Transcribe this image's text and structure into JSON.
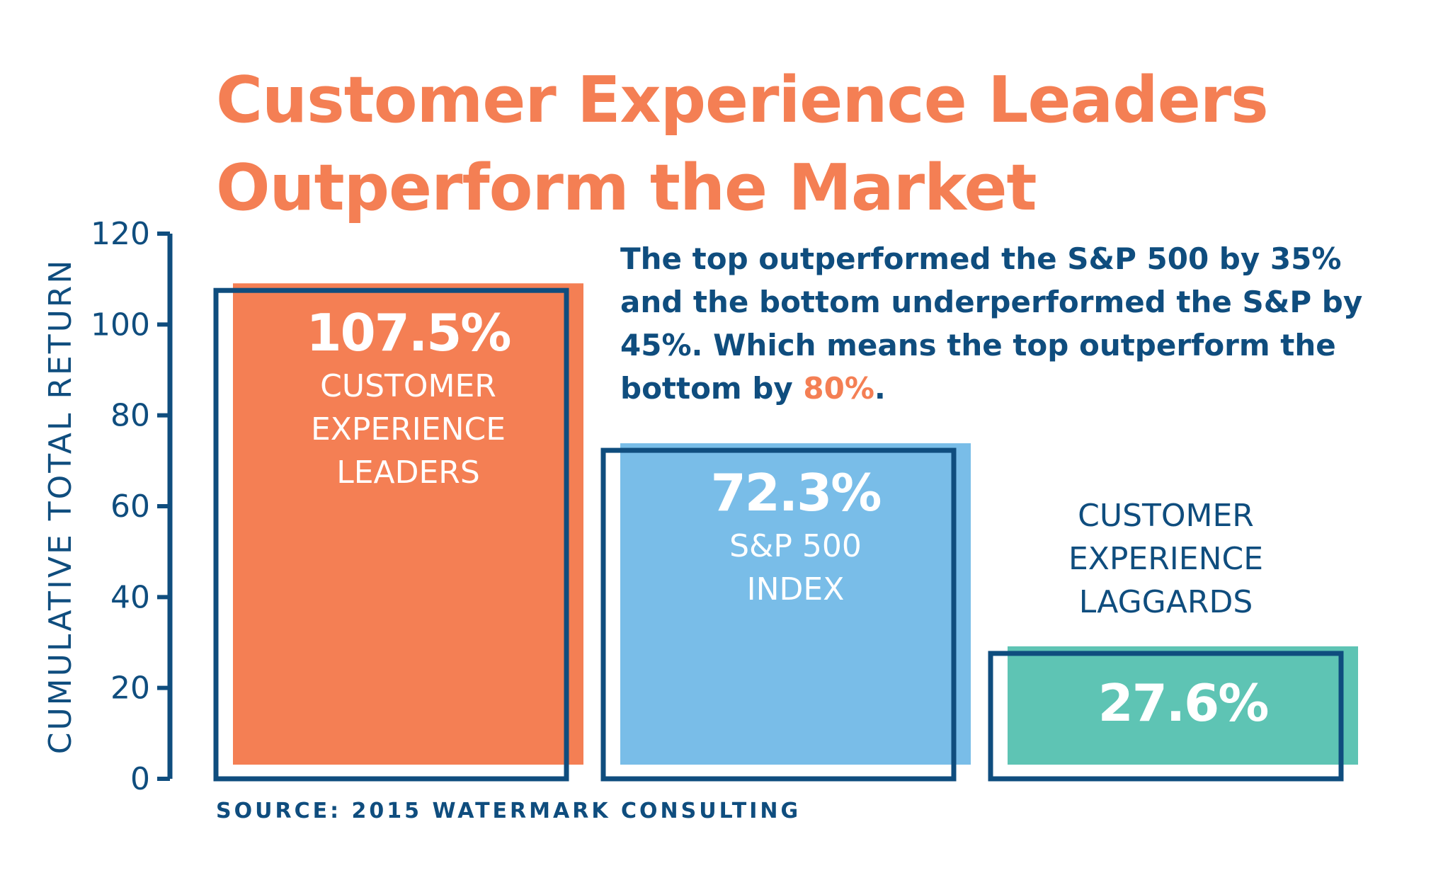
{
  "title_lines": [
    "Customer Experience Leaders",
    "Outperform the Market"
  ],
  "note": {
    "before": "The top outperformed the S&P 500 by 35% and the bottom underperformed the S&P by 45%. Which means the top outperform the bottom by ",
    "highlight": "80%",
    "after": "."
  },
  "source": "SOURCE: 2015 WATERMARK CONSULTING",
  "colors": {
    "title": "#f47f54",
    "navy": "#0f4d7e",
    "leaders": "#f47f54",
    "sp500": "#79bde8",
    "laggards": "#5ec4b4",
    "bar_text": "#ffffff"
  },
  "chart_data": {
    "type": "bar",
    "title": "Customer Experience Leaders Outperform the Market",
    "ylabel": "CUMULATIVE TOTAL RETURN",
    "xlabel": "",
    "ylim": [
      0,
      120
    ],
    "yticks": [
      0,
      20,
      40,
      60,
      80,
      100,
      120
    ],
    "grid": false,
    "categories": [
      "CUSTOMER EXPERIENCE LEADERS",
      "S&P 500 INDEX",
      "CUSTOMER EXPERIENCE LAGGARDS"
    ],
    "values": [
      107.5,
      72.3,
      27.6
    ],
    "value_labels": [
      "107.5%",
      "72.3%",
      "27.6%"
    ],
    "category_label_lines": [
      [
        "CUSTOMER",
        "EXPERIENCE",
        "LEADERS"
      ],
      [
        "S&P 500",
        "INDEX"
      ],
      [
        "CUSTOMER",
        "EXPERIENCE",
        "LAGGARDS"
      ]
    ],
    "bar_colors": [
      "#f47f54",
      "#79bde8",
      "#5ec4b4"
    ],
    "category_label_position": [
      "inside",
      "inside",
      "above"
    ]
  }
}
